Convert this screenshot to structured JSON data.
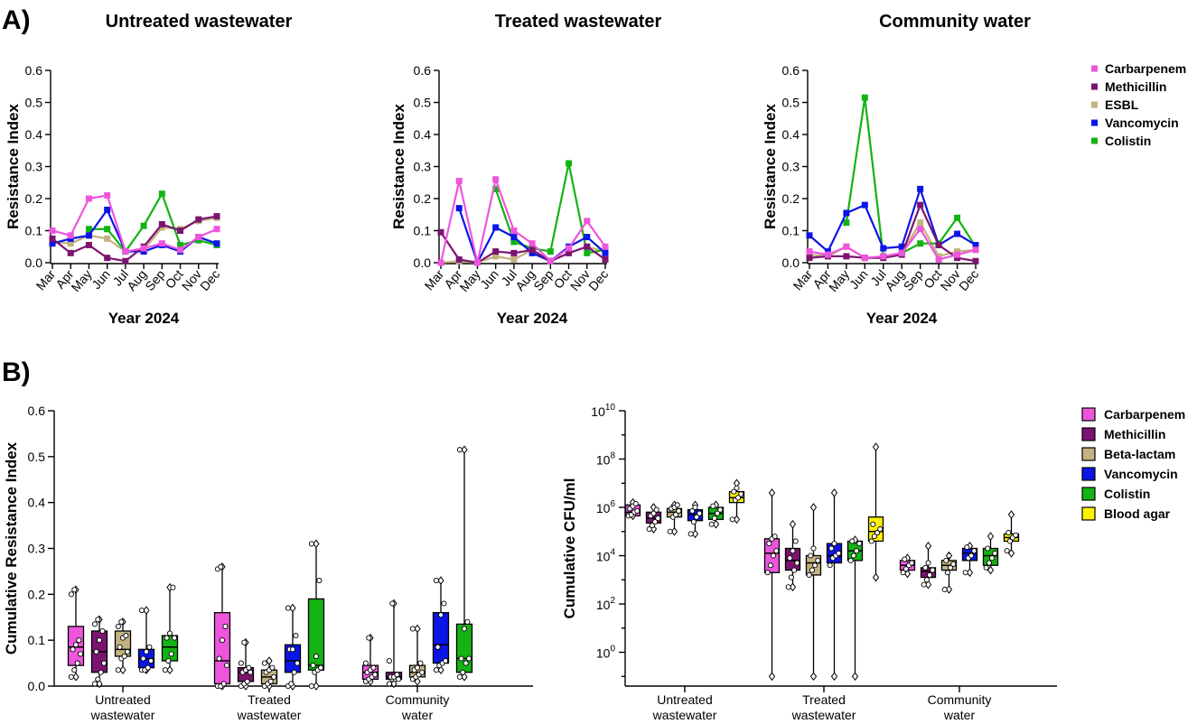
{
  "panel_labels": [
    "A)",
    "B)"
  ],
  "colors": {
    "Carbarpenem": "#ee55dd",
    "Methicillin": "#7b1470",
    "ESBL": "#c2b280",
    "Beta-lactam": "#c2b280",
    "Vancomycin": "#0b15e6",
    "Colistin": "#13b313",
    "Blood agar": "#fff200"
  },
  "chart_data": [
    {
      "type": "line",
      "title": "Untreated wastewater",
      "xlabel": "Year 2024",
      "ylabel": "Resistance Index",
      "ylim": [
        0,
        0.6
      ],
      "yticks": [
        "0.0",
        "0.1",
        "0.2",
        "0.3",
        "0.4",
        "0.5",
        "0.6"
      ],
      "categories": [
        "Mar",
        "Apr",
        "May",
        "Jun",
        "Jul",
        "Aug",
        "Sep",
        "Oct",
        "Nov",
        "Dec"
      ],
      "series": [
        {
          "name": "ESBL",
          "values": [
            0.065,
            0.06,
            0.085,
            0.075,
            0.035,
            0.04,
            0.11,
            0.105,
            0.13,
            0.14
          ]
        },
        {
          "name": "Colistin",
          "values": [
            null,
            null,
            0.105,
            0.105,
            0.035,
            0.115,
            0.215,
            0.055,
            0.07,
            0.055
          ]
        },
        {
          "name": "Vancomycin",
          "values": [
            0.06,
            0.075,
            0.085,
            0.165,
            0.035,
            0.035,
            0.055,
            0.035,
            0.08,
            0.06
          ]
        },
        {
          "name": "Methicillin",
          "values": [
            0.075,
            0.03,
            0.055,
            0.015,
            0.005,
            0.05,
            0.12,
            0.1,
            0.135,
            0.145
          ]
        },
        {
          "name": "Carbarpenem",
          "values": [
            0.1,
            0.085,
            0.2,
            0.21,
            0.035,
            0.045,
            0.06,
            0.04,
            0.08,
            0.105
          ]
        }
      ]
    },
    {
      "type": "line",
      "title": "Treated wastewater",
      "xlabel": "Year 2024",
      "ylabel": "Resistance Index",
      "ylim": [
        0,
        0.6
      ],
      "yticks": [
        "0.0",
        "0.1",
        "0.2",
        "0.3",
        "0.4",
        "0.5",
        "0.6"
      ],
      "categories": [
        "Mar",
        "Apr",
        "May",
        "Jun",
        "Jul",
        "Aug",
        "Sep",
        "Oct",
        "Nov",
        "Dec"
      ],
      "series": [
        {
          "name": "ESBL",
          "values": [
            0.0,
            0.005,
            0.0,
            0.02,
            0.01,
            0.04,
            0.005,
            0.03,
            0.05,
            0.035
          ]
        },
        {
          "name": "Colistin",
          "values": [
            null,
            null,
            null,
            0.23,
            0.065,
            0.045,
            0.035,
            0.31,
            0.03,
            0.04
          ]
        },
        {
          "name": "Vancomycin",
          "values": [
            null,
            0.17,
            0.0,
            0.11,
            0.08,
            0.03,
            0.005,
            0.05,
            0.08,
            0.03
          ]
        },
        {
          "name": "Methicillin",
          "values": [
            0.095,
            0.01,
            0.0,
            0.035,
            0.03,
            0.04,
            0.005,
            0.03,
            0.05,
            0.01
          ]
        },
        {
          "name": "Carbarpenem",
          "values": [
            0.0,
            0.255,
            0.0,
            0.26,
            0.1,
            0.06,
            0.005,
            0.045,
            0.13,
            0.05
          ]
        }
      ]
    },
    {
      "type": "line",
      "title": "Community water",
      "xlabel": "Year 2024",
      "ylabel": "Resistance Index",
      "ylim": [
        0,
        0.6
      ],
      "yticks": [
        "0.0",
        "0.1",
        "0.2",
        "0.3",
        "0.4",
        "0.5",
        "0.6"
      ],
      "categories": [
        "Mar",
        "Apr",
        "May",
        "Jun",
        "Jul",
        "Aug",
        "Sep",
        "Oct",
        "Nov",
        "Dec"
      ],
      "legend": [
        "Carbarpenem",
        "Methicillin",
        "ESBL",
        "Vancomycin",
        "Colistin"
      ],
      "series": [
        {
          "name": "ESBL",
          "values": [
            0.025,
            0.02,
            0.05,
            0.015,
            0.015,
            0.03,
            0.125,
            0.02,
            0.035,
            0.04
          ]
        },
        {
          "name": "Colistin",
          "values": [
            null,
            null,
            0.125,
            0.515,
            0.02,
            0.03,
            0.06,
            0.06,
            0.14,
            0.05
          ]
        },
        {
          "name": "Vancomycin",
          "values": [
            0.085,
            0.035,
            0.155,
            0.18,
            0.045,
            0.05,
            0.23,
            0.055,
            0.09,
            0.055
          ]
        },
        {
          "name": "Methicillin",
          "values": [
            0.015,
            0.02,
            0.02,
            0.015,
            0.015,
            0.025,
            0.18,
            0.055,
            0.015,
            0.005
          ]
        },
        {
          "name": "Carbarpenem",
          "values": [
            0.035,
            0.025,
            0.05,
            0.015,
            0.02,
            0.03,
            0.105,
            0.01,
            0.025,
            0.04
          ]
        }
      ]
    },
    {
      "type": "box",
      "xlabel": "",
      "ylabel": "Cumulative Resistance Index",
      "ylim": [
        0,
        0.6
      ],
      "yticks": [
        "0.0",
        "0.1",
        "0.2",
        "0.3",
        "0.4",
        "0.5",
        "0.6"
      ],
      "groups": [
        [
          "Untreated",
          "wastewater"
        ],
        [
          "Treated",
          "wastewater"
        ],
        [
          "Community",
          "water"
        ]
      ],
      "boxes": [
        {
          "group": 0,
          "series": "Carbarpenem",
          "min": 0.02,
          "q1": 0.045,
          "median": 0.085,
          "q3": 0.13,
          "max": 0.21,
          "points": [
            0.02,
            0.035,
            0.05,
            0.07,
            0.08,
            0.09,
            0.1,
            0.2,
            0.21
          ]
        },
        {
          "group": 0,
          "series": "Methicillin",
          "min": 0.005,
          "q1": 0.03,
          "median": 0.075,
          "q3": 0.12,
          "max": 0.145,
          "points": [
            0.005,
            0.015,
            0.03,
            0.05,
            0.075,
            0.1,
            0.12,
            0.135,
            0.145
          ]
        },
        {
          "group": 0,
          "series": "Beta-lactam",
          "min": 0.035,
          "q1": 0.065,
          "median": 0.08,
          "q3": 0.12,
          "max": 0.14,
          "points": [
            0.035,
            0.06,
            0.065,
            0.075,
            0.085,
            0.105,
            0.11,
            0.13,
            0.14
          ]
        },
        {
          "group": 0,
          "series": "Vancomycin",
          "min": 0.035,
          "q1": 0.04,
          "median": 0.06,
          "q3": 0.08,
          "max": 0.165,
          "points": [
            0.035,
            0.035,
            0.04,
            0.055,
            0.06,
            0.075,
            0.085,
            0.165
          ]
        },
        {
          "group": 0,
          "series": "Colistin",
          "min": 0.035,
          "q1": 0.055,
          "median": 0.085,
          "q3": 0.11,
          "max": 0.215,
          "points": [
            0.035,
            0.055,
            0.07,
            0.105,
            0.105,
            0.115,
            0.215
          ]
        },
        {
          "group": 1,
          "series": "Carbarpenem",
          "min": 0.0,
          "q1": 0.005,
          "median": 0.055,
          "q3": 0.16,
          "max": 0.26,
          "points": [
            0.0,
            0.0,
            0.005,
            0.045,
            0.06,
            0.1,
            0.13,
            0.255,
            0.26
          ]
        },
        {
          "group": 1,
          "series": "Methicillin",
          "min": 0.0,
          "q1": 0.01,
          "median": 0.03,
          "q3": 0.04,
          "max": 0.095,
          "points": [
            0.0,
            0.005,
            0.01,
            0.03,
            0.03,
            0.035,
            0.04,
            0.05,
            0.095
          ]
        },
        {
          "group": 1,
          "series": "Beta-lactam",
          "min": 0.0,
          "q1": 0.005,
          "median": 0.02,
          "q3": 0.035,
          "max": 0.055,
          "points": [
            0.0,
            0.005,
            0.01,
            0.02,
            0.03,
            0.035,
            0.04,
            0.05
          ]
        },
        {
          "group": 1,
          "series": "Vancomycin",
          "min": 0.0,
          "q1": 0.03,
          "median": 0.055,
          "q3": 0.09,
          "max": 0.17,
          "points": [
            0.0,
            0.005,
            0.03,
            0.05,
            0.08,
            0.08,
            0.11,
            0.17
          ]
        },
        {
          "group": 1,
          "series": "Colistin",
          "min": 0.0,
          "q1": 0.035,
          "median": 0.045,
          "q3": 0.19,
          "max": 0.31,
          "points": [
            0.0,
            0.03,
            0.035,
            0.04,
            0.045,
            0.065,
            0.23,
            0.31
          ]
        },
        {
          "group": 2,
          "series": "Carbarpenem",
          "min": 0.01,
          "q1": 0.015,
          "median": 0.03,
          "q3": 0.045,
          "max": 0.105,
          "points": [
            0.01,
            0.015,
            0.02,
            0.025,
            0.03,
            0.035,
            0.04,
            0.05,
            0.105
          ]
        },
        {
          "group": 2,
          "series": "Methicillin",
          "min": 0.005,
          "q1": 0.015,
          "median": 0.02,
          "q3": 0.03,
          "max": 0.18,
          "points": [
            0.005,
            0.015,
            0.015,
            0.015,
            0.02,
            0.02,
            0.025,
            0.055,
            0.18
          ]
        },
        {
          "group": 2,
          "series": "Beta-lactam",
          "min": 0.01,
          "q1": 0.02,
          "median": 0.03,
          "q3": 0.045,
          "max": 0.125,
          "points": [
            0.015,
            0.02,
            0.025,
            0.03,
            0.035,
            0.04,
            0.05,
            0.125
          ]
        },
        {
          "group": 2,
          "series": "Vancomycin",
          "min": 0.035,
          "q1": 0.05,
          "median": 0.09,
          "q3": 0.16,
          "max": 0.23,
          "points": [
            0.035,
            0.045,
            0.05,
            0.055,
            0.085,
            0.155,
            0.18,
            0.23
          ]
        },
        {
          "group": 2,
          "series": "Colistin",
          "min": 0.02,
          "q1": 0.03,
          "median": 0.06,
          "q3": 0.135,
          "max": 0.515,
          "points": [
            0.02,
            0.03,
            0.05,
            0.06,
            0.06,
            0.125,
            0.14,
            0.515
          ]
        }
      ]
    },
    {
      "type": "box",
      "scale": "log10",
      "xlabel": "",
      "ylabel": "Cumulative CFU/ml",
      "ylim_log10": [
        -1.4,
        10
      ],
      "yticks": [
        {
          "base": "10",
          "exp": "0",
          "log": 0
        },
        {
          "base": "10",
          "exp": "2",
          "log": 2
        },
        {
          "base": "10",
          "exp": "4",
          "log": 4
        },
        {
          "base": "10",
          "exp": "6",
          "log": 6
        },
        {
          "base": "10",
          "exp": "8",
          "log": 8
        },
        {
          "base": "10",
          "exp": "10",
          "log": 10
        }
      ],
      "groups": [
        [
          "Untreated",
          "wastewater"
        ],
        [
          "Treated",
          "wastewater"
        ],
        [
          "Community",
          "water"
        ]
      ],
      "legend": [
        "Carbarpenem",
        "Methicillin",
        "Beta-lactam",
        "Vancomycin",
        "Colistin",
        "Blood agar"
      ],
      "boxes": [
        {
          "group": 0,
          "series": "Carbarpenem",
          "min": 5.65,
          "q1": 5.65,
          "median": 5.8,
          "q3": 6.1,
          "max": 6.2,
          "points": [
            5.65,
            5.7,
            5.8,
            5.85,
            5.95,
            6.05,
            6.15
          ]
        },
        {
          "group": 0,
          "series": "Methicillin",
          "min": 5.1,
          "q1": 5.35,
          "median": 5.55,
          "q3": 5.8,
          "max": 6.0,
          "points": [
            5.1,
            5.25,
            5.4,
            5.55,
            5.65,
            5.75,
            5.9
          ]
        },
        {
          "group": 0,
          "series": "Beta-lactam",
          "min": 5.0,
          "q1": 5.6,
          "median": 5.8,
          "q3": 5.95,
          "max": 6.1,
          "points": [
            5.0,
            5.6,
            5.7,
            5.85,
            5.95,
            6.0,
            6.1
          ]
        },
        {
          "group": 0,
          "series": "Vancomycin",
          "min": 4.9,
          "q1": 5.45,
          "median": 5.7,
          "q3": 5.9,
          "max": 6.1,
          "points": [
            4.9,
            5.4,
            5.6,
            5.75,
            5.85,
            6.0
          ]
        },
        {
          "group": 0,
          "series": "Colistin",
          "min": 5.3,
          "q1": 5.5,
          "median": 5.75,
          "q3": 6.0,
          "max": 6.1,
          "points": [
            5.3,
            5.55,
            5.75,
            5.9,
            6.05
          ]
        },
        {
          "group": 0,
          "series": "Blood agar",
          "min": 5.5,
          "q1": 6.2,
          "median": 6.4,
          "q3": 6.65,
          "max": 7.0,
          "points": [
            5.5,
            6.3,
            6.4,
            6.55,
            6.65,
            6.8
          ]
        },
        {
          "group": 1,
          "series": "Carbarpenem",
          "min": -1.0,
          "q1": 3.3,
          "median": 4.1,
          "q3": 4.7,
          "max": 6.6,
          "points": [
            3.3,
            3.6,
            4.0,
            4.2,
            4.5,
            4.7,
            4.8
          ]
        },
        {
          "group": 1,
          "series": "Methicillin",
          "min": 2.7,
          "q1": 3.4,
          "median": 3.8,
          "q3": 4.3,
          "max": 5.3,
          "points": [
            2.7,
            3.1,
            3.4,
            3.7,
            3.9,
            4.2,
            4.6
          ]
        },
        {
          "group": 1,
          "series": "Beta-lactam",
          "min": -1.0,
          "q1": 3.2,
          "median": 3.7,
          "q3": 4.0,
          "max": 6.0,
          "points": [
            3.2,
            3.4,
            3.6,
            3.8,
            4.0,
            4.3
          ]
        },
        {
          "group": 1,
          "series": "Vancomycin",
          "min": -1.0,
          "q1": 3.7,
          "median": 4.0,
          "q3": 4.5,
          "max": 6.6,
          "points": [
            3.6,
            3.9,
            4.0,
            4.1,
            4.3,
            4.5
          ]
        },
        {
          "group": 1,
          "series": "Colistin",
          "min": -1.0,
          "q1": 3.8,
          "median": 4.2,
          "q3": 4.6,
          "max": 4.65,
          "points": [
            3.8,
            4.0,
            4.2,
            4.5,
            4.6
          ]
        },
        {
          "group": 1,
          "series": "Blood agar",
          "min": 3.1,
          "q1": 4.6,
          "median": 5.0,
          "q3": 5.6,
          "max": 8.5,
          "points": [
            4.6,
            4.8,
            4.95,
            5.1,
            5.3
          ]
        },
        {
          "group": 2,
          "series": "Carbarpenem",
          "min": 3.25,
          "q1": 3.4,
          "median": 3.6,
          "q3": 3.8,
          "max": 3.9,
          "points": [
            3.3,
            3.45,
            3.6,
            3.7,
            3.85
          ]
        },
        {
          "group": 2,
          "series": "Methicillin",
          "min": 2.8,
          "q1": 3.1,
          "median": 3.35,
          "q3": 3.5,
          "max": 4.4,
          "points": [
            2.8,
            3.0,
            3.2,
            3.4,
            3.5,
            3.7
          ]
        },
        {
          "group": 2,
          "series": "Beta-lactam",
          "min": 2.6,
          "q1": 3.4,
          "median": 3.6,
          "q3": 3.8,
          "max": 4.0,
          "points": [
            2.6,
            3.3,
            3.5,
            3.65,
            3.8,
            4.0
          ]
        },
        {
          "group": 2,
          "series": "Vancomycin",
          "min": 3.3,
          "q1": 3.8,
          "median": 4.1,
          "q3": 4.3,
          "max": 4.4,
          "points": [
            3.3,
            3.9,
            4.0,
            4.2,
            4.35
          ]
        },
        {
          "group": 2,
          "series": "Colistin",
          "min": 3.4,
          "q1": 3.6,
          "median": 4.0,
          "q3": 4.3,
          "max": 4.8,
          "points": [
            3.5,
            3.7,
            3.9,
            4.1,
            4.3
          ]
        },
        {
          "group": 2,
          "series": "Blood agar",
          "min": 4.1,
          "q1": 4.6,
          "median": 4.75,
          "q3": 4.9,
          "max": 5.7,
          "points": [
            4.2,
            4.6,
            4.75,
            4.85,
            4.95
          ]
        }
      ]
    }
  ]
}
